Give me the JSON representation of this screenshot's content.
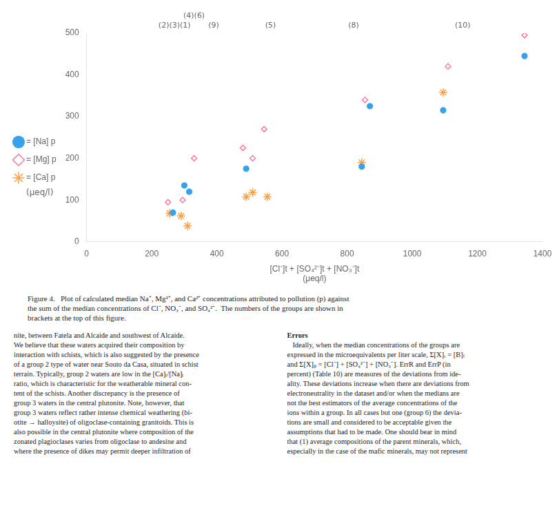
{
  "chart_data": {
    "type": "scatter",
    "x_label": "[Cl⁻]t + [SO₄²⁻]t + [NO₃⁻]t\n(μeq/l)",
    "xlim": [
      0,
      1400
    ],
    "ylim": [
      0,
      500
    ],
    "xticks": [
      0,
      200,
      400,
      600,
      800,
      1000,
      1200,
      1400
    ],
    "yticks": [
      0,
      100,
      200,
      300,
      400,
      500
    ],
    "grid": false,
    "legend": "left",
    "legend_note": "(μeq/l)",
    "series": [
      {
        "name": "= [Na] p",
        "color": "#36a2eb",
        "marker": "circle",
        "x": [
          265,
          300,
          315,
          490,
          845,
          870,
          1095,
          1345
        ],
        "values": [
          70,
          135,
          120,
          175,
          180,
          325,
          315,
          445
        ]
      },
      {
        "name": "= [Mg] p",
        "color": "#ff6384",
        "marker": "diamond-open",
        "x": [
          250,
          295,
          330,
          480,
          510,
          545,
          855,
          1110,
          1345
        ],
        "values": [
          95,
          100,
          200,
          225,
          200,
          270,
          340,
          420,
          495
        ]
      },
      {
        "name": "= [Ca] p",
        "color": "#ff9f40",
        "marker": "star",
        "x": [
          255,
          290,
          310,
          490,
          510,
          555,
          845,
          1095
        ],
        "values": [
          68,
          62,
          38,
          108,
          118,
          108,
          190,
          358
        ]
      }
    ],
    "annotations": [
      {
        "text": "(2)(3)(1)",
        "x": 270
      },
      {
        "text": "(4)(6)",
        "x": 330
      },
      {
        "text": "(9)",
        "x": 390
      },
      {
        "text": "(5)",
        "x": 565
      },
      {
        "text": "(8)",
        "x": 820
      },
      {
        "text": "(10)",
        "x": 1155
      }
    ]
  },
  "caption": "Figure 4.   Plot of calculated median Na⁺, Mg²⁺, and Ca²⁺ concentrations attributed to pollution (p) against\nthe sum of the median concentrations of Cl⁻, NO₃⁻, and SO₄²⁻.  The numbers of the groups are shown in\nbrackets at the top of this figure.",
  "body_left": "nite, between Fatela and Alcaide and southwest of Alcaide.\nWe believe that these waters acquired their composition by\ninteraction with schists, which is also suggested by the presence\nof a group 2 type of water near Souto da Casa, situated in schist\nterrain. Typically, group 2 waters are low in the [Ca]ₗ/[Na]ₗ\nratio, which is characteristic for the weatherable mineral con-\ntent of the schists. Another discrepancy is the presence of\ngroup 3 waters in the central plutonite. Note, however, that\ngroup 3 waters reflect rather intense chemical weathering (bi-\notite → halloysite) of oligoclase-containing granitoids. This is\nalso possible in the central plutonite where composition of the\nzonated plagioclases varies from oligoclase to andesine and\nwhere the presence of dikes may permit deeper infiltration of",
  "body_right_title": "Errors",
  "body_right": "   Ideally, when the median concentrations of the groups are\nexpressed in the microequivalents per liter scale, Σ[X]ᵣ = [B]ₗ\nand Σ[X]ₚ = [Cl⁻] + [SO₄²⁻] + [NO₃⁻]. ErrR and ErrP (in\npercent) (Table 10) are measures of the deviations from ide-\nality. These deviations increase when there are deviations from\nelectroneutrality in the dataset and/or when the medians are\nnot the best estimators of the average concentrations of the\nions within a group. In all cases but one (group 6) the devia-\ntions are small and considered to be acceptable given the\nassumptions that had to be made. One should bear in mind\nthat (1) average compositions of the parent minerals, which,\nespecially in the case of the mafic minerals, may not represent"
}
